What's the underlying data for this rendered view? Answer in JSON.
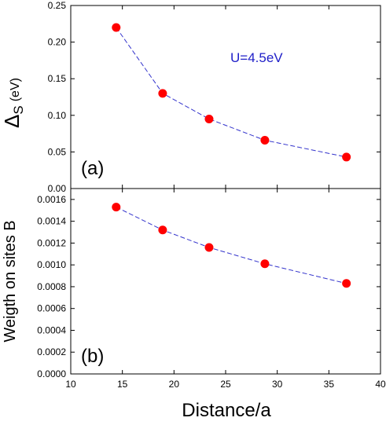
{
  "chart_data": [
    {
      "type": "line",
      "panel_label": "(a)",
      "annotation": "U=4.5eV",
      "ylabel_symbol": "Δ",
      "ylabel_subscript": "S",
      "ylabel_unit": "(eV)",
      "xlim": [
        10,
        40
      ],
      "ylim": [
        0.0,
        0.25
      ],
      "x_ticks": [
        10,
        15,
        20,
        25,
        30,
        35,
        40
      ],
      "y_ticks": [
        "0.00",
        "0.05",
        "0.10",
        "0.15",
        "0.20",
        "0.25"
      ],
      "series": [
        {
          "x": [
            14.4,
            18.9,
            23.4,
            28.8,
            36.7
          ],
          "y": [
            0.22,
            0.13,
            0.095,
            0.066,
            0.043
          ]
        }
      ]
    },
    {
      "type": "line",
      "panel_label": "(b)",
      "ylabel": "Weigth on sites B",
      "xlabel": "Distance/a",
      "xlim": [
        10,
        40
      ],
      "ylim": [
        0.0,
        0.0017
      ],
      "x_ticks": [
        "10",
        "15",
        "20",
        "25",
        "30",
        "35",
        "40"
      ],
      "y_ticks": [
        "0.0000",
        "0.0002",
        "0.0004",
        "0.0006",
        "0.0008",
        "0.0010",
        "0.0012",
        "0.0014",
        "0.0016"
      ],
      "series": [
        {
          "x": [
            14.4,
            18.9,
            23.4,
            28.8,
            36.7
          ],
          "y": [
            0.00153,
            0.00132,
            0.00116,
            0.00101,
            0.00083
          ]
        }
      ]
    }
  ],
  "colors": {
    "marker": "#ff0000",
    "line": "#3333cc",
    "annotation": "#2020c8",
    "axis": "#000000"
  }
}
